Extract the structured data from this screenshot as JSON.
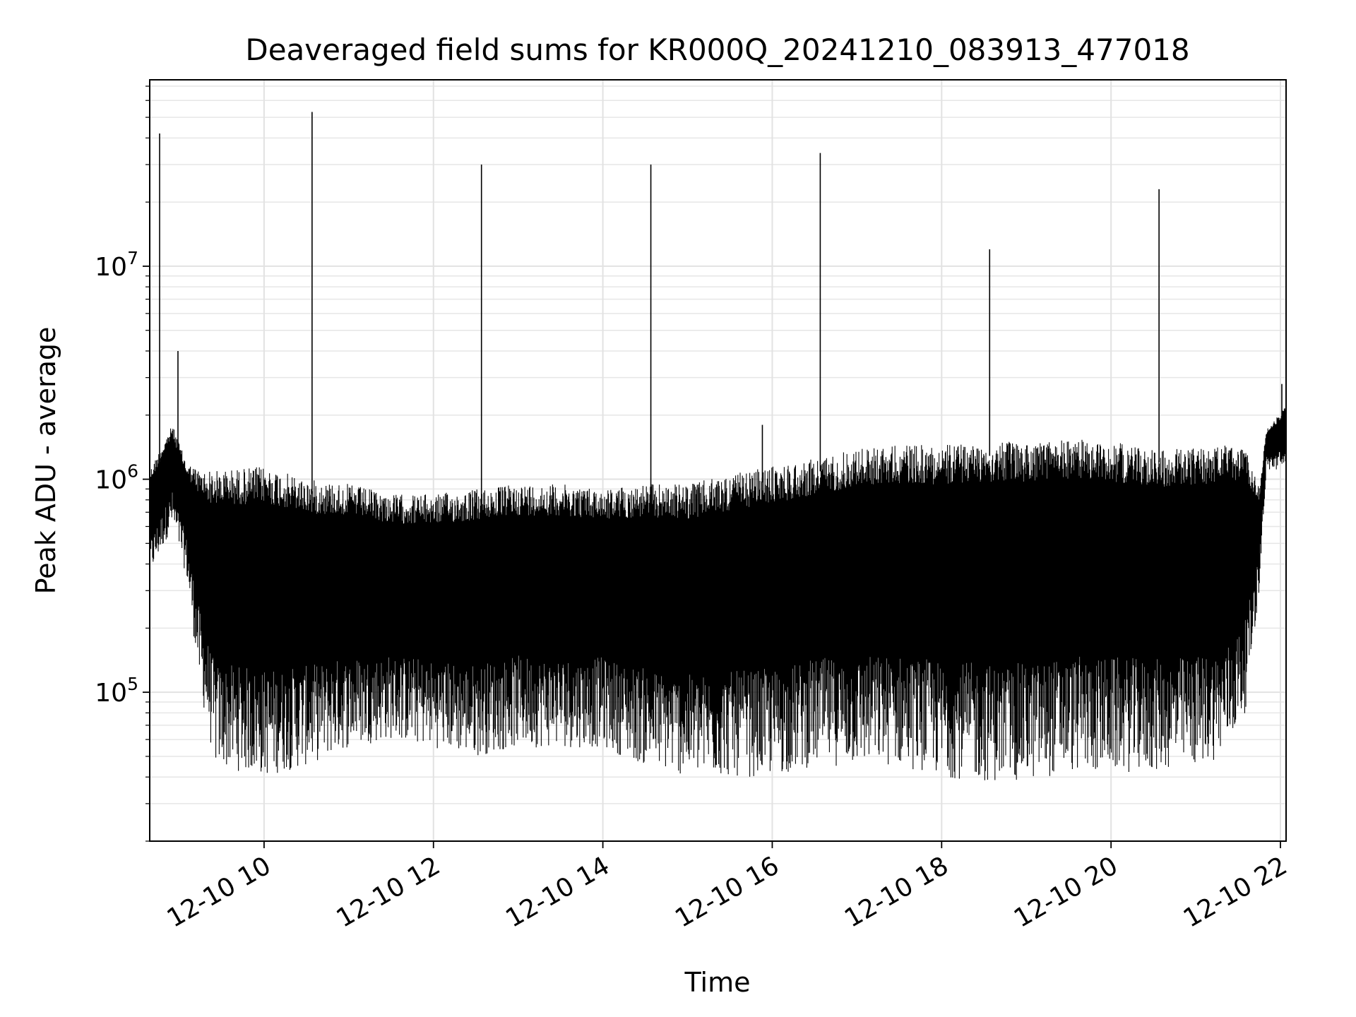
{
  "chart_data": {
    "type": "line",
    "title": "Deaveraged field sums for KR000Q_20241210_083913_477018",
    "xlabel": "Time",
    "ylabel": "Peak ADU - average",
    "y_scale": "log",
    "grid": "on (major and minor)",
    "x_range": [
      "2024-12-10T08:39",
      "2024-12-10T22:04"
    ],
    "ylim": [
      20000,
      75000000
    ],
    "x_ticks": [
      {
        "value": "2024-12-10T10:00",
        "label": "12-10 10"
      },
      {
        "value": "2024-12-10T12:00",
        "label": "12-10 12"
      },
      {
        "value": "2024-12-10T14:00",
        "label": "12-10 14"
      },
      {
        "value": "2024-12-10T16:00",
        "label": "12-10 16"
      },
      {
        "value": "2024-12-10T18:00",
        "label": "12-10 18"
      },
      {
        "value": "2024-12-10T20:00",
        "label": "12-10 20"
      },
      {
        "value": "2024-12-10T22:00",
        "label": "12-10 22"
      }
    ],
    "y_ticks": [
      {
        "value": 100000,
        "base": "10",
        "exp": "5"
      },
      {
        "value": 1000000,
        "base": "10",
        "exp": "6"
      },
      {
        "value": 10000000,
        "base": "10",
        "exp": "7"
      }
    ],
    "series": [
      {
        "color": "#000000",
        "spikes": [
          {
            "t": "2024-12-10T08:46",
            "value": 42000000
          },
          {
            "t": "2024-12-10T08:59",
            "value": 4000000
          },
          {
            "t": "2024-12-10T10:34",
            "value": 53000000
          },
          {
            "t": "2024-12-10T12:34",
            "value": 30000000
          },
          {
            "t": "2024-12-10T14:34",
            "value": 30000000
          },
          {
            "t": "2024-12-10T15:53",
            "value": 1800000
          },
          {
            "t": "2024-12-10T16:34",
            "value": 34000000
          },
          {
            "t": "2024-12-10T18:34",
            "value": 12000000
          },
          {
            "t": "2024-12-10T20:34",
            "value": 23000000
          },
          {
            "t": "2024-12-10T22:01",
            "value": 2800000
          }
        ],
        "envelope": [
          {
            "t": "2024-12-10T08:39",
            "upper": 1100000,
            "lower": 350000
          },
          {
            "t": "2024-12-10T08:55",
            "upper": 1800000,
            "lower": 600000
          },
          {
            "t": "2024-12-10T09:05",
            "upper": 1200000,
            "lower": 350000
          },
          {
            "t": "2024-12-10T09:15",
            "upper": 1100000,
            "lower": 100000
          },
          {
            "t": "2024-12-10T09:25",
            "upper": 1100000,
            "lower": 45000
          },
          {
            "t": "2024-12-10T10:00",
            "upper": 1150000,
            "lower": 40000
          },
          {
            "t": "2024-12-10T10:30",
            "upper": 1000000,
            "lower": 45000
          },
          {
            "t": "2024-12-10T11:00",
            "upper": 950000,
            "lower": 55000
          },
          {
            "t": "2024-12-10T11:30",
            "upper": 850000,
            "lower": 60000
          },
          {
            "t": "2024-12-10T12:00",
            "upper": 850000,
            "lower": 55000
          },
          {
            "t": "2024-12-10T12:30",
            "upper": 900000,
            "lower": 50000
          },
          {
            "t": "2024-12-10T13:00",
            "upper": 950000,
            "lower": 55000
          },
          {
            "t": "2024-12-10T13:30",
            "upper": 950000,
            "lower": 55000
          },
          {
            "t": "2024-12-10T14:00",
            "upper": 900000,
            "lower": 55000
          },
          {
            "t": "2024-12-10T14:30",
            "upper": 950000,
            "lower": 45000
          },
          {
            "t": "2024-12-10T15:00",
            "upper": 950000,
            "lower": 40000
          },
          {
            "t": "2024-12-10T15:30",
            "upper": 1050000,
            "lower": 40000
          },
          {
            "t": "2024-12-10T16:00",
            "upper": 1150000,
            "lower": 40000
          },
          {
            "t": "2024-12-10T16:30",
            "upper": 1250000,
            "lower": 45000
          },
          {
            "t": "2024-12-10T17:00",
            "upper": 1400000,
            "lower": 45000
          },
          {
            "t": "2024-12-10T17:30",
            "upper": 1450000,
            "lower": 45000
          },
          {
            "t": "2024-12-10T18:00",
            "upper": 1450000,
            "lower": 40000
          },
          {
            "t": "2024-12-10T18:30",
            "upper": 1500000,
            "lower": 38000
          },
          {
            "t": "2024-12-10T19:00",
            "upper": 1500000,
            "lower": 38000
          },
          {
            "t": "2024-12-10T19:30",
            "upper": 1550000,
            "lower": 42000
          },
          {
            "t": "2024-12-10T20:00",
            "upper": 1500000,
            "lower": 42000
          },
          {
            "t": "2024-12-10T20:30",
            "upper": 1400000,
            "lower": 42000
          },
          {
            "t": "2024-12-10T21:00",
            "upper": 1400000,
            "lower": 45000
          },
          {
            "t": "2024-12-10T21:20",
            "upper": 1450000,
            "lower": 50000
          },
          {
            "t": "2024-12-10T21:35",
            "upper": 1400000,
            "lower": 80000
          },
          {
            "t": "2024-12-10T21:45",
            "upper": 900000,
            "lower": 300000
          },
          {
            "t": "2024-12-10T21:50",
            "upper": 1700000,
            "lower": 1100000
          },
          {
            "t": "2024-12-10T22:04",
            "upper": 2200000,
            "lower": 1100000
          }
        ]
      }
    ]
  }
}
